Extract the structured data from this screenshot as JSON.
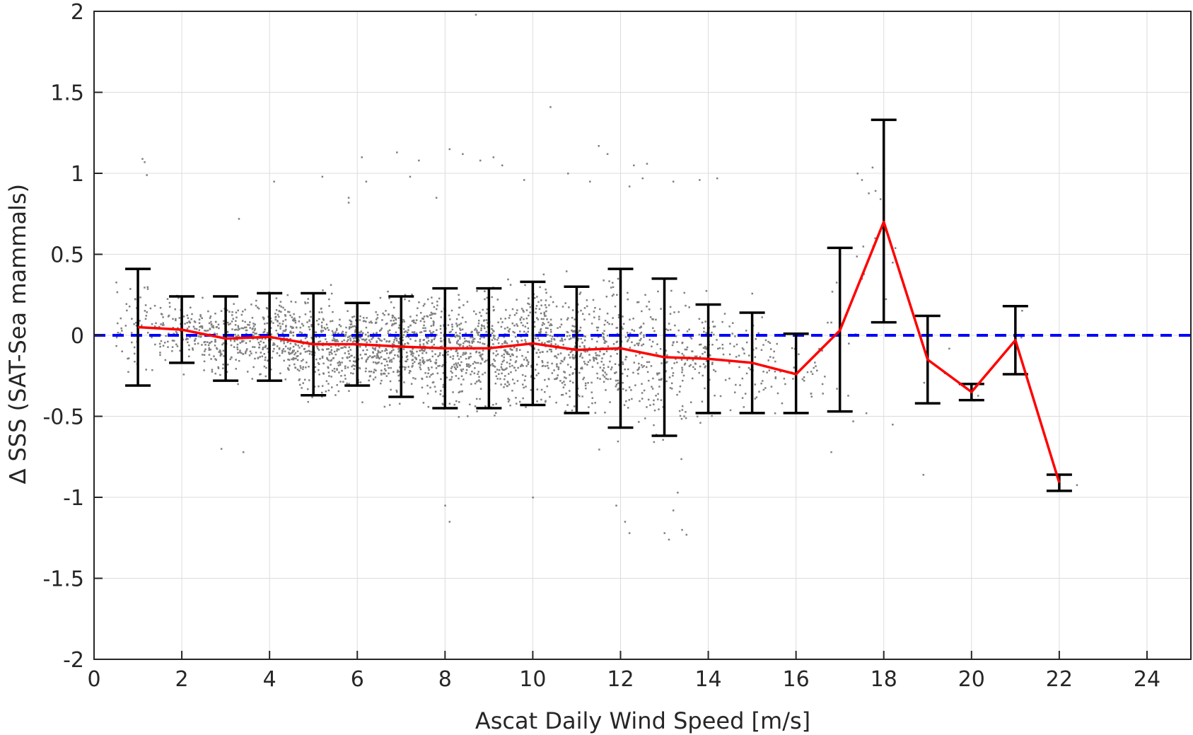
{
  "chart_data": {
    "type": "scatter",
    "xlabel": "Ascat Daily Wind Speed [m/s]",
    "ylabel": "∆ SSS (SAT-Sea mammals)",
    "xlim": [
      0,
      25
    ],
    "ylim": [
      -2,
      2
    ],
    "x_ticks": [
      0,
      2,
      4,
      6,
      8,
      10,
      12,
      14,
      16,
      18,
      20,
      22,
      24
    ],
    "y_ticks": [
      -2,
      -1.5,
      -1,
      -0.5,
      0,
      0.5,
      1,
      1.5,
      2
    ],
    "y_tick_labels": [
      "-2",
      "-1.5",
      "-1",
      "-0.5",
      "0",
      "0.5",
      "1",
      "1.5",
      "2"
    ],
    "grid": true,
    "legend": "none",
    "colors": {
      "scatter": "#808080",
      "mean_line": "#ff0000",
      "zero_line": "#0000ff",
      "error_bars": "#000000",
      "grid": "#dcdcdc",
      "axes": "#262626"
    },
    "series": [
      {
        "type": "line-with-errorbars",
        "x": [
          1,
          2,
          3,
          4,
          5,
          6,
          7,
          8,
          9,
          10,
          11,
          12,
          13,
          14,
          15,
          16,
          17,
          18,
          19,
          20,
          21,
          22
        ],
        "mean": [
          0.05,
          0.035,
          -0.02,
          -0.01,
          -0.055,
          -0.055,
          -0.07,
          -0.08,
          -0.08,
          -0.05,
          -0.09,
          -0.08,
          -0.135,
          -0.145,
          -0.17,
          -0.24,
          0.03,
          0.7,
          -0.15,
          -0.35,
          -0.03,
          -0.91
        ],
        "upper": [
          0.41,
          0.24,
          0.24,
          0.26,
          0.26,
          0.2,
          0.24,
          0.29,
          0.29,
          0.33,
          0.3,
          0.41,
          0.35,
          0.19,
          0.14,
          0.01,
          0.54,
          1.33,
          0.12,
          -0.3,
          0.18,
          -0.86
        ],
        "lower": [
          -0.31,
          -0.17,
          -0.28,
          -0.28,
          -0.37,
          -0.31,
          -0.38,
          -0.45,
          -0.45,
          -0.43,
          -0.48,
          -0.57,
          -0.62,
          -0.48,
          -0.48,
          -0.48,
          -0.47,
          0.08,
          -0.42,
          -0.4,
          -0.24,
          -0.96
        ]
      },
      {
        "type": "reference-line",
        "y": 0
      },
      {
        "type": "scatter-cloud",
        "points": [
          [
            1.1,
            1.09
          ],
          [
            1.15,
            1.07
          ],
          [
            1.2,
            0.99
          ],
          [
            3.3,
            0.72
          ],
          [
            4.1,
            0.95
          ],
          [
            5.2,
            0.98
          ],
          [
            5.8,
            0.85
          ],
          [
            5.8,
            0.82
          ],
          [
            6.1,
            1.1
          ],
          [
            6.2,
            0.95
          ],
          [
            6.9,
            1.13
          ],
          [
            7.4,
            1.08
          ],
          [
            7.2,
            0.98
          ],
          [
            7.8,
            0.85
          ],
          [
            8.1,
            1.15
          ],
          [
            8.4,
            1.12
          ],
          [
            8.8,
            1.08
          ],
          [
            9.1,
            1.1
          ],
          [
            9.3,
            1.05
          ],
          [
            9.8,
            0.96
          ],
          [
            10.4,
            1.41
          ],
          [
            10.8,
            1.0
          ],
          [
            11.3,
            0.95
          ],
          [
            11.5,
            1.17
          ],
          [
            11.7,
            1.12
          ],
          [
            12.3,
            1.05
          ],
          [
            12.5,
            0.97
          ],
          [
            12.6,
            1.06
          ],
          [
            12.2,
            0.92
          ],
          [
            13.2,
            0.95
          ],
          [
            13.8,
            0.96
          ],
          [
            14.2,
            0.97
          ],
          [
            17.4,
            1.0
          ],
          [
            17.5,
            0.96
          ],
          [
            18.0,
            0.81
          ],
          [
            8.0,
            -1.05
          ],
          [
            8.1,
            -1.15
          ],
          [
            10.0,
            -1.0
          ],
          [
            11.9,
            -1.05
          ],
          [
            12.1,
            -1.15
          ],
          [
            12.2,
            -1.22
          ],
          [
            13.0,
            -1.22
          ],
          [
            13.1,
            -1.26
          ],
          [
            13.2,
            -1.08
          ],
          [
            13.4,
            -1.2
          ],
          [
            13.5,
            -1.23
          ],
          [
            13.3,
            -0.97
          ],
          [
            16.8,
            -0.72
          ],
          [
            17.3,
            -0.53
          ],
          [
            18.9,
            -0.86
          ],
          [
            17.8,
            0.6
          ],
          [
            18.2,
            0.45
          ],
          [
            17.5,
            0.35
          ],
          [
            2.9,
            -0.7
          ],
          [
            3.4,
            -0.72
          ],
          [
            8.7,
            1.98
          ],
          [
            16.4,
            -0.2
          ],
          [
            16.6,
            -0.3
          ],
          [
            16.8,
            0.08
          ],
          [
            17.2,
            -0.05
          ],
          [
            17.6,
            -0.48
          ],
          [
            18.2,
            -0.55
          ]
        ]
      }
    ]
  }
}
